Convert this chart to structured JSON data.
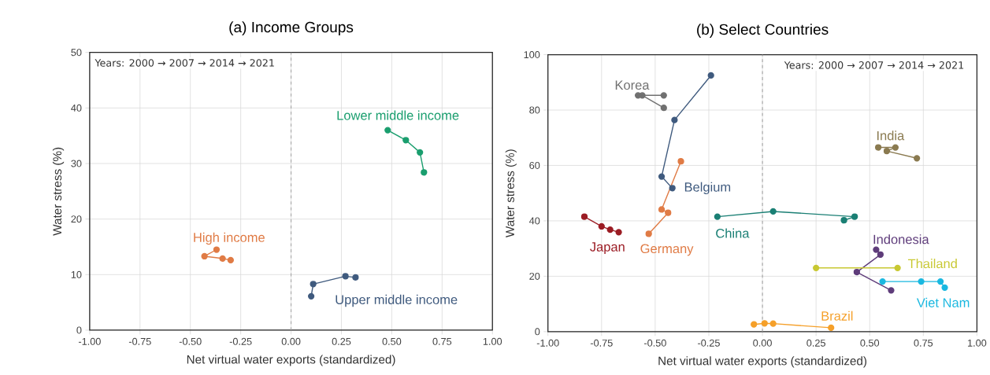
{
  "chart_data": [
    {
      "type": "line",
      "title": "(a) Income Groups",
      "xlabel": "Net virtual water exports (standardized)",
      "ylabel": "Water stress (%)",
      "annotations": [
        "Years: 2000 → 2007 → 2014 → 2021"
      ],
      "xlim": [
        -1,
        1
      ],
      "ylim": [
        0,
        50
      ],
      "xticks": [
        {
          "value": -1,
          "label": "-1.00"
        },
        {
          "value": -0.75,
          "label": "-0.75"
        },
        {
          "value": -0.5,
          "label": "-0.50"
        },
        {
          "value": -0.25,
          "label": "-0.25"
        },
        {
          "value": 0,
          "label": "0.00"
        },
        {
          "value": 0.25,
          "label": "0.25"
        },
        {
          "value": 0.5,
          "label": "0.50"
        },
        {
          "value": 0.75,
          "label": "0.75"
        },
        {
          "value": 1,
          "label": "1.00"
        }
      ],
      "yticks": [
        0,
        10,
        20,
        30,
        40,
        50
      ],
      "grid": true,
      "marker": "circle",
      "line_style": "solid",
      "ref_lines": [
        {
          "axis": "x",
          "value": 0,
          "color": "#a0a0a0",
          "line_style": "dashed"
        }
      ],
      "series": [
        {
          "name": "Lower middle income",
          "color": "#1a9e6e",
          "x": [
            0.66,
            0.64,
            0.57,
            0.48
          ],
          "values": [
            28.4,
            32.0,
            34.2,
            36.0
          ]
        },
        {
          "name": "Upper middle income",
          "color": "#3f5a7e",
          "x": [
            0.1,
            0.11,
            0.27,
            0.32
          ],
          "values": [
            6.1,
            8.3,
            9.7,
            9.5
          ]
        },
        {
          "name": "High income",
          "color": "#e07b45",
          "x": [
            -0.37,
            -0.43,
            -0.34,
            -0.3
          ],
          "values": [
            14.5,
            13.3,
            12.9,
            12.6
          ]
        }
      ]
    },
    {
      "type": "line",
      "title": "(b) Select Countries",
      "xlabel": "Net virtual water exports (standardized)",
      "ylabel": "Water stress (%)",
      "annotations": [
        "Years:  2000 → 2007 → 2014 → 2021"
      ],
      "xlim": [
        -1,
        1
      ],
      "ylim": [
        0,
        100
      ],
      "xticks": [
        {
          "value": -1,
          "label": "-1.00"
        },
        {
          "value": -0.75,
          "label": "-0.75"
        },
        {
          "value": -0.5,
          "label": "-0.50"
        },
        {
          "value": -0.25,
          "label": "-0.25"
        },
        {
          "value": 0,
          "label": "0.00"
        },
        {
          "value": 0.25,
          "label": "0.25"
        },
        {
          "value": 0.5,
          "label": "0.50"
        },
        {
          "value": 0.75,
          "label": "0.75"
        },
        {
          "value": 1,
          "label": "1.00"
        }
      ],
      "yticks": [
        0,
        20,
        40,
        60,
        80,
        100
      ],
      "grid": true,
      "marker": "circle",
      "line_style": "solid",
      "ref_lines": [
        {
          "axis": "x",
          "value": 0,
          "color": "#a0a0a0",
          "line_style": "dashed"
        }
      ],
      "series": [
        {
          "name": "Korea",
          "color": "#707070",
          "x": [
            -0.46,
            -0.56,
            -0.46,
            -0.58
          ],
          "values": [
            80.8,
            85.3,
            85.3,
            85.3
          ]
        },
        {
          "name": "Belgium",
          "color": "#3f5a7e",
          "x": [
            -0.24,
            -0.41,
            -0.47,
            -0.42
          ],
          "values": [
            92.5,
            76.4,
            56.0,
            51.8
          ]
        },
        {
          "name": "Germany",
          "color": "#e07b45",
          "x": [
            -0.38,
            -0.47,
            -0.44,
            -0.53
          ],
          "values": [
            61.5,
            44.1,
            42.9,
            35.3
          ]
        },
        {
          "name": "Japan",
          "color": "#9b1c24",
          "x": [
            -0.83,
            -0.75,
            -0.71,
            -0.67
          ],
          "values": [
            41.5,
            38.0,
            36.8,
            35.9
          ]
        },
        {
          "name": "China",
          "color": "#1a7f74",
          "x": [
            0.38,
            0.43,
            0.05,
            -0.21
          ],
          "values": [
            40.2,
            41.5,
            43.4,
            41.5
          ]
        },
        {
          "name": "India",
          "color": "#8a7a50",
          "x": [
            0.72,
            0.58,
            0.62,
            0.54
          ],
          "values": [
            62.6,
            65.2,
            66.5,
            66.5
          ]
        },
        {
          "name": "Indonesia",
          "color": "#5e3c7a",
          "x": [
            0.6,
            0.44,
            0.55,
            0.53
          ],
          "values": [
            14.9,
            21.5,
            27.8,
            29.6
          ]
        },
        {
          "name": "Thailand",
          "color": "#c8c832",
          "x": [
            0.25,
            0.63
          ],
          "values": [
            23.0,
            23.0
          ]
        },
        {
          "name": "Viet Nam",
          "color": "#1ab8e0",
          "x": [
            0.85,
            0.83,
            0.74,
            0.56
          ],
          "values": [
            15.9,
            18.1,
            18.1,
            18.1
          ]
        },
        {
          "name": "Brazil",
          "color": "#f5a02a",
          "x": [
            -0.04,
            0.01,
            0.05,
            0.32
          ],
          "values": [
            2.6,
            3.0,
            2.9,
            1.4
          ]
        }
      ]
    }
  ]
}
